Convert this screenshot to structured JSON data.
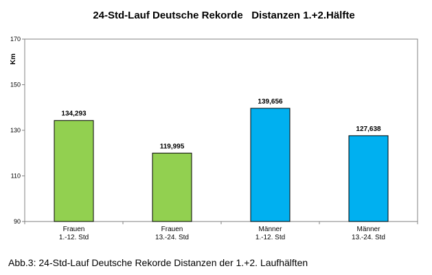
{
  "chart_data": {
    "type": "bar",
    "title": "24-Std-Lauf Deutsche Rekorde   Distanzen 1.+2.Hälfte",
    "ylabel": "Km",
    "xlabel": "",
    "ylim": [
      90,
      170
    ],
    "yticks": [
      90,
      110,
      130,
      150,
      170
    ],
    "grid": false,
    "legend": "none",
    "categories": [
      [
        "Frauen",
        "1.-12. Std"
      ],
      [
        "Frauen",
        "13.-24. Std"
      ],
      [
        "Männer",
        "1.-12. Std"
      ],
      [
        "Männer",
        "13.-24. Std"
      ]
    ],
    "values": [
      134.293,
      119.995,
      139.656,
      127.638
    ],
    "data_labels": [
      "134,293",
      "119,995",
      "139,656",
      "127,638"
    ],
    "bar_colors": [
      "#92D050",
      "#92D050",
      "#00B0F0",
      "#00B0F0"
    ]
  },
  "caption": "Abb.3: 24-Std-Lauf Deutsche Rekorde Distanzen der 1.+2. Laufhälften"
}
